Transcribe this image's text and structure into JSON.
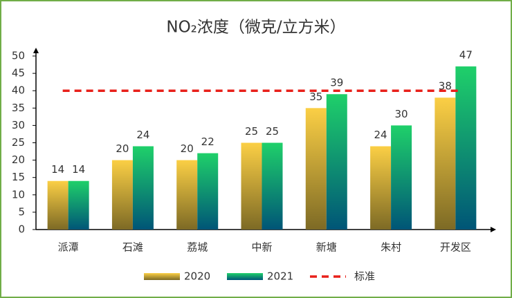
{
  "chart_data": {
    "type": "bar",
    "title": "NO₂浓度（微克/立方米）",
    "categories": [
      "派潭",
      "石滩",
      "荔城",
      "中新",
      "新塘",
      "朱村",
      "开发区"
    ],
    "series": [
      {
        "name": "2020",
        "color": "#fbcf45",
        "color_bottom": "#7d6a25",
        "values": [
          14,
          20,
          20,
          25,
          35,
          24,
          38
        ]
      },
      {
        "name": "2021",
        "color": "#1fd06a",
        "color_bottom": "#005577",
        "values": [
          14,
          24,
          22,
          25,
          39,
          30,
          47
        ]
      }
    ],
    "reference_line": {
      "name": "标准",
      "value": 40,
      "color": "#e8201a"
    },
    "ylim": [
      0,
      50
    ],
    "yticks": [
      0,
      5,
      10,
      15,
      20,
      25,
      30,
      35,
      40,
      45,
      50
    ],
    "grid": false,
    "legend": "bottom"
  }
}
